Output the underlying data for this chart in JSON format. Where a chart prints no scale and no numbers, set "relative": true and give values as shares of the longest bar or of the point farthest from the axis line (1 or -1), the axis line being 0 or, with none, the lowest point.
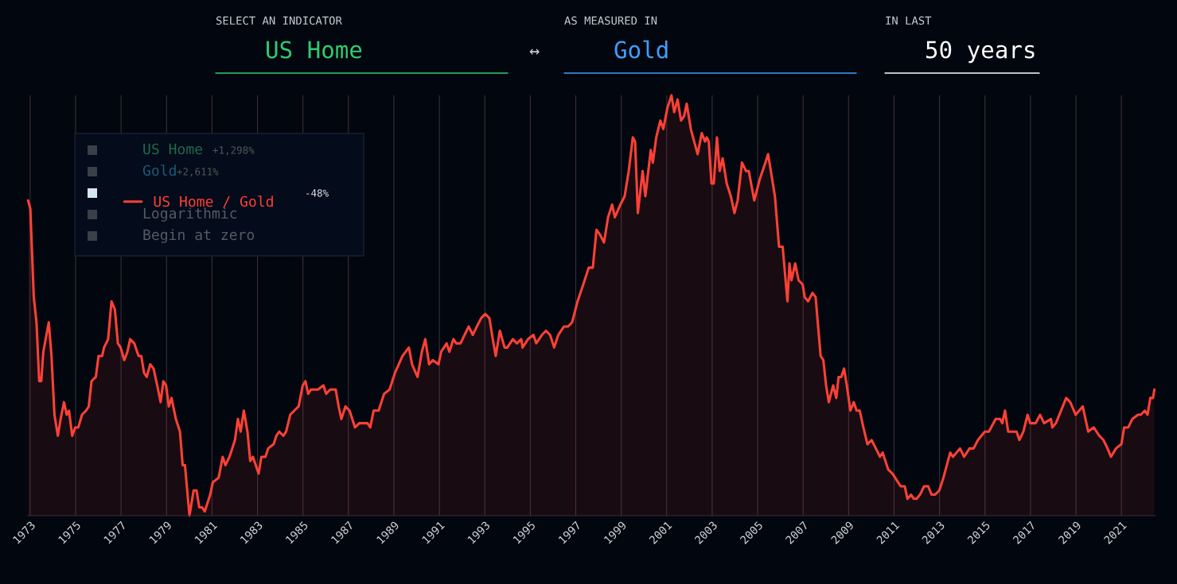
{
  "chart_data": {
    "type": "area",
    "relative": true,
    "grid": "x",
    "legend": "top left",
    "annotations": [
      "SELECT AN INDICATOR",
      "US Home",
      "↔",
      "AS MEASURED IN",
      "Gold",
      "IN LAST",
      "50 years",
      "US Home",
      "+1,298%",
      "Gold",
      "+2,611%",
      "-48%",
      "Logarithmic",
      "Begin at zero"
    ],
    "xlim": [
      1972.9,
      2022.5
    ],
    "xticks": [
      1973,
      1975,
      1977,
      1979,
      1981,
      1983,
      1985,
      1987,
      1989,
      1991,
      1993,
      1995,
      1997,
      1999,
      2001,
      2003,
      2005,
      2007,
      2009,
      2011,
      2013,
      2015,
      2017,
      2019,
      2021
    ],
    "series": [
      {
        "name": "US Home / Gold",
        "color": "#ff4136",
        "x": [
          1972.91,
          1973.01,
          1973.16,
          1973.28,
          1973.4,
          1973.49,
          1973.58,
          1973.82,
          1973.94,
          1974.07,
          1974.22,
          1974.34,
          1974.49,
          1974.61,
          1974.71,
          1974.85,
          1974.98,
          1975.12,
          1975.28,
          1975.46,
          1975.58,
          1975.7,
          1975.89,
          1976.01,
          1976.17,
          1976.25,
          1976.43,
          1976.58,
          1976.73,
          1976.86,
          1976.98,
          1977.14,
          1977.28,
          1977.4,
          1977.58,
          1977.77,
          1977.89,
          1978.01,
          1978.13,
          1978.28,
          1978.43,
          1978.59,
          1978.74,
          1978.86,
          1978.98,
          1979.1,
          1979.22,
          1979.41,
          1979.59,
          1979.71,
          1979.81,
          1980.01,
          1980.19,
          1980.32,
          1980.44,
          1980.56,
          1980.68,
          1980.92,
          1981.04,
          1981.29,
          1981.47,
          1981.59,
          1981.77,
          1982.01,
          1982.14,
          1982.26,
          1982.4,
          1982.56,
          1982.68,
          1982.8,
          1983.05,
          1983.17,
          1983.35,
          1983.47,
          1983.71,
          1983.83,
          1983.96,
          1984.14,
          1984.26,
          1984.44,
          1984.62,
          1984.81,
          1984.99,
          1985.11,
          1985.23,
          1985.35,
          1985.53,
          1985.66,
          1985.9,
          1986.02,
          1986.2,
          1986.44,
          1986.57,
          1986.69,
          1986.87,
          1987.05,
          1987.29,
          1987.48,
          1987.84,
          1987.96,
          1988.11,
          1988.33,
          1988.57,
          1988.81,
          1989.05,
          1989.38,
          1989.66,
          1989.8,
          1990.04,
          1990.23,
          1990.38,
          1990.55,
          1990.71,
          1990.96,
          1991.08,
          1991.32,
          1991.44,
          1991.62,
          1991.74,
          1991.93,
          1992.11,
          1992.29,
          1992.47,
          1992.65,
          1992.84,
          1993.02,
          1993.2,
          1993.38,
          1993.48,
          1993.66,
          1993.87,
          1993.99,
          1994.23,
          1994.41,
          1994.6,
          1994.66,
          1994.9,
          1995.14,
          1995.26,
          1995.51,
          1995.69,
          1995.87,
          1996.05,
          1996.23,
          1996.48,
          1996.66,
          1996.84,
          1997.08,
          1997.33,
          1997.57,
          1997.75,
          1997.91,
          1998.05,
          1998.24,
          1998.42,
          1998.6,
          1998.72,
          1998.96,
          1999.15,
          1999.33,
          1999.51,
          1999.61,
          1999.73,
          1999.94,
          2000.06,
          2000.3,
          2000.39,
          2000.54,
          2000.72,
          2000.85,
          2001.03,
          2001.21,
          2001.33,
          2001.48,
          2001.63,
          2001.76,
          2001.88,
          2002.06,
          2002.36,
          2002.54,
          2002.69,
          2002.76,
          2002.85,
          2002.97,
          2003.07,
          2003.21,
          2003.33,
          2003.46,
          2003.64,
          2003.82,
          2003.98,
          2004.12,
          2004.31,
          2004.49,
          2004.61,
          2004.85,
          2005.09,
          2005.34,
          2005.46,
          2005.76,
          2005.94,
          2006.1,
          2006.31,
          2006.4,
          2006.49,
          2006.65,
          2006.8,
          2006.98,
          2007.07,
          2007.22,
          2007.41,
          2007.55,
          2007.77,
          2007.89,
          2008.01,
          2008.13,
          2008.32,
          2008.46,
          2008.56,
          2008.68,
          2008.8,
          2008.92,
          2009.08,
          2009.23,
          2009.35,
          2009.49,
          2009.65,
          2009.83,
          2010.01,
          2010.2,
          2010.38,
          2010.5,
          2010.74,
          2010.93,
          2011.05,
          2011.29,
          2011.47,
          2011.59,
          2011.75,
          2011.87,
          2011.99,
          2012.14,
          2012.32,
          2012.5,
          2012.65,
          2012.8,
          2012.99,
          2013.17,
          2013.47,
          2013.59,
          2013.9,
          2014.08,
          2014.32,
          2014.5,
          2014.69,
          2014.99,
          2015.17,
          2015.47,
          2015.66,
          2015.76,
          2015.88,
          2016.02,
          2016.2,
          2016.39,
          2016.51,
          2016.69,
          2016.87,
          2016.99,
          2017.23,
          2017.42,
          2017.6,
          2017.9,
          2017.96,
          2018.12,
          2018.57,
          2018.75,
          2018.99,
          2019.3,
          2019.54,
          2019.78,
          2020.03,
          2020.21,
          2020.39,
          2020.54,
          2020.76,
          2021.0,
          2021.12,
          2021.3,
          2021.48,
          2021.73,
          2021.85,
          2022.03,
          2022.15,
          2022.27,
          2022.39,
          2022.45
        ],
        "values": [
          0.75,
          0.73,
          0.52,
          0.46,
          0.32,
          0.32,
          0.39,
          0.46,
          0.38,
          0.24,
          0.19,
          0.23,
          0.27,
          0.24,
          0.25,
          0.19,
          0.21,
          0.21,
          0.24,
          0.25,
          0.26,
          0.32,
          0.33,
          0.38,
          0.38,
          0.4,
          0.42,
          0.51,
          0.49,
          0.41,
          0.4,
          0.37,
          0.39,
          0.42,
          0.41,
          0.38,
          0.38,
          0.34,
          0.33,
          0.36,
          0.35,
          0.31,
          0.27,
          0.32,
          0.31,
          0.26,
          0.28,
          0.23,
          0.2,
          0.12,
          0.12,
          0.0,
          0.06,
          0.06,
          0.02,
          0.02,
          0.01,
          0.05,
          0.08,
          0.09,
          0.14,
          0.12,
          0.14,
          0.18,
          0.23,
          0.2,
          0.25,
          0.2,
          0.13,
          0.14,
          0.1,
          0.14,
          0.14,
          0.16,
          0.17,
          0.19,
          0.2,
          0.19,
          0.2,
          0.24,
          0.25,
          0.26,
          0.31,
          0.32,
          0.29,
          0.3,
          0.3,
          0.3,
          0.31,
          0.29,
          0.3,
          0.3,
          0.26,
          0.23,
          0.26,
          0.25,
          0.21,
          0.22,
          0.22,
          0.21,
          0.25,
          0.25,
          0.29,
          0.3,
          0.34,
          0.38,
          0.4,
          0.36,
          0.33,
          0.39,
          0.42,
          0.36,
          0.37,
          0.36,
          0.39,
          0.41,
          0.39,
          0.42,
          0.41,
          0.41,
          0.43,
          0.45,
          0.43,
          0.45,
          0.47,
          0.48,
          0.47,
          0.41,
          0.38,
          0.44,
          0.4,
          0.4,
          0.42,
          0.41,
          0.42,
          0.4,
          0.42,
          0.43,
          0.41,
          0.43,
          0.44,
          0.43,
          0.4,
          0.43,
          0.45,
          0.45,
          0.46,
          0.51,
          0.55,
          0.59,
          0.59,
          0.68,
          0.67,
          0.65,
          0.71,
          0.74,
          0.71,
          0.74,
          0.76,
          0.82,
          0.9,
          0.89,
          0.72,
          0.82,
          0.76,
          0.87,
          0.84,
          0.9,
          0.94,
          0.92,
          0.97,
          1.0,
          0.96,
          0.99,
          0.94,
          0.95,
          0.98,
          0.92,
          0.86,
          0.91,
          0.89,
          0.9,
          0.89,
          0.79,
          0.79,
          0.9,
          0.82,
          0.85,
          0.79,
          0.76,
          0.72,
          0.75,
          0.84,
          0.82,
          0.82,
          0.75,
          0.8,
          0.84,
          0.86,
          0.76,
          0.64,
          0.64,
          0.51,
          0.6,
          0.56,
          0.6,
          0.56,
          0.55,
          0.52,
          0.51,
          0.53,
          0.52,
          0.38,
          0.37,
          0.31,
          0.27,
          0.31,
          0.28,
          0.33,
          0.33,
          0.35,
          0.31,
          0.25,
          0.27,
          0.25,
          0.25,
          0.21,
          0.17,
          0.18,
          0.16,
          0.14,
          0.15,
          0.11,
          0.1,
          0.09,
          0.07,
          0.07,
          0.04,
          0.05,
          0.04,
          0.04,
          0.05,
          0.07,
          0.07,
          0.05,
          0.05,
          0.06,
          0.09,
          0.15,
          0.14,
          0.16,
          0.14,
          0.16,
          0.16,
          0.18,
          0.2,
          0.2,
          0.23,
          0.23,
          0.22,
          0.25,
          0.2,
          0.2,
          0.2,
          0.18,
          0.2,
          0.24,
          0.22,
          0.22,
          0.24,
          0.22,
          0.23,
          0.21,
          0.22,
          0.28,
          0.27,
          0.24,
          0.26,
          0.2,
          0.21,
          0.19,
          0.18,
          0.16,
          0.14,
          0.16,
          0.17,
          0.21,
          0.21,
          0.23,
          0.24,
          0.24,
          0.25,
          0.24,
          0.28,
          0.28,
          0.3
        ]
      }
    ]
  }
}
